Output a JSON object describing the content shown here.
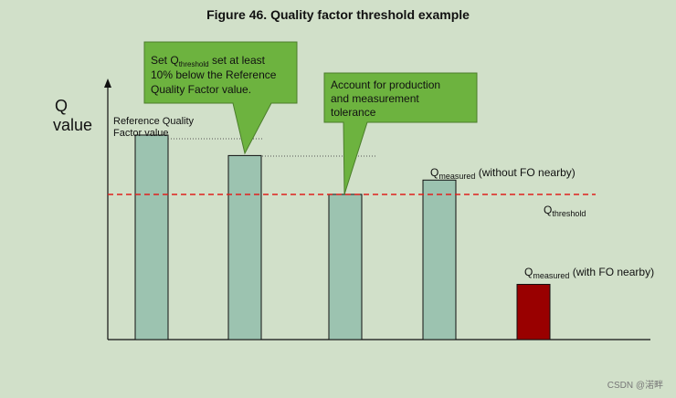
{
  "figure_title": "Figure 46. Quality factor threshold example",
  "y_axis_label_line1": "Q",
  "y_axis_label_line2": "value",
  "reference_label_line1": "Reference Quality",
  "reference_label_line2": "Factor value",
  "callout1": {
    "line1_prefix": "Set Q",
    "line1_sub": "threshold",
    "line1_suffix": " set at least",
    "line2": "10% below the Reference",
    "line3": "Quality Factor value."
  },
  "callout2": {
    "line1": "Account for production",
    "line2": "and measurement",
    "line3": "tolerance"
  },
  "q_measured_no_fo": {
    "main": "Q",
    "sub": "measured",
    "suffix": " (without FO nearby)"
  },
  "q_threshold": {
    "main": "Q",
    "sub": "threshold"
  },
  "q_measured_fo": {
    "main": "Q",
    "sub": "measured",
    "suffix": " (with FO nearby)"
  },
  "watermark": "CSDN @渃畔",
  "colors": {
    "background": "#d1e0c9",
    "bar_fill": "#9cc3b0",
    "bar_fo_fill": "#990000",
    "threshold_line": "#e0201c",
    "callout_fill": "#6db33f"
  },
  "chart_data": {
    "type": "bar",
    "note_levels": "relative Q levels (arbitrary units), no numeric axis",
    "bars": [
      {
        "id": "reference",
        "value": 100
      },
      {
        "id": "threshold-set",
        "value": 90
      },
      {
        "id": "tolerance",
        "value": 71
      },
      {
        "id": "measured-without-fo",
        "value": 78
      },
      {
        "id": "measured-with-fo",
        "value": 27
      }
    ],
    "threshold_value": 71,
    "ylim": [
      0,
      125
    ]
  }
}
